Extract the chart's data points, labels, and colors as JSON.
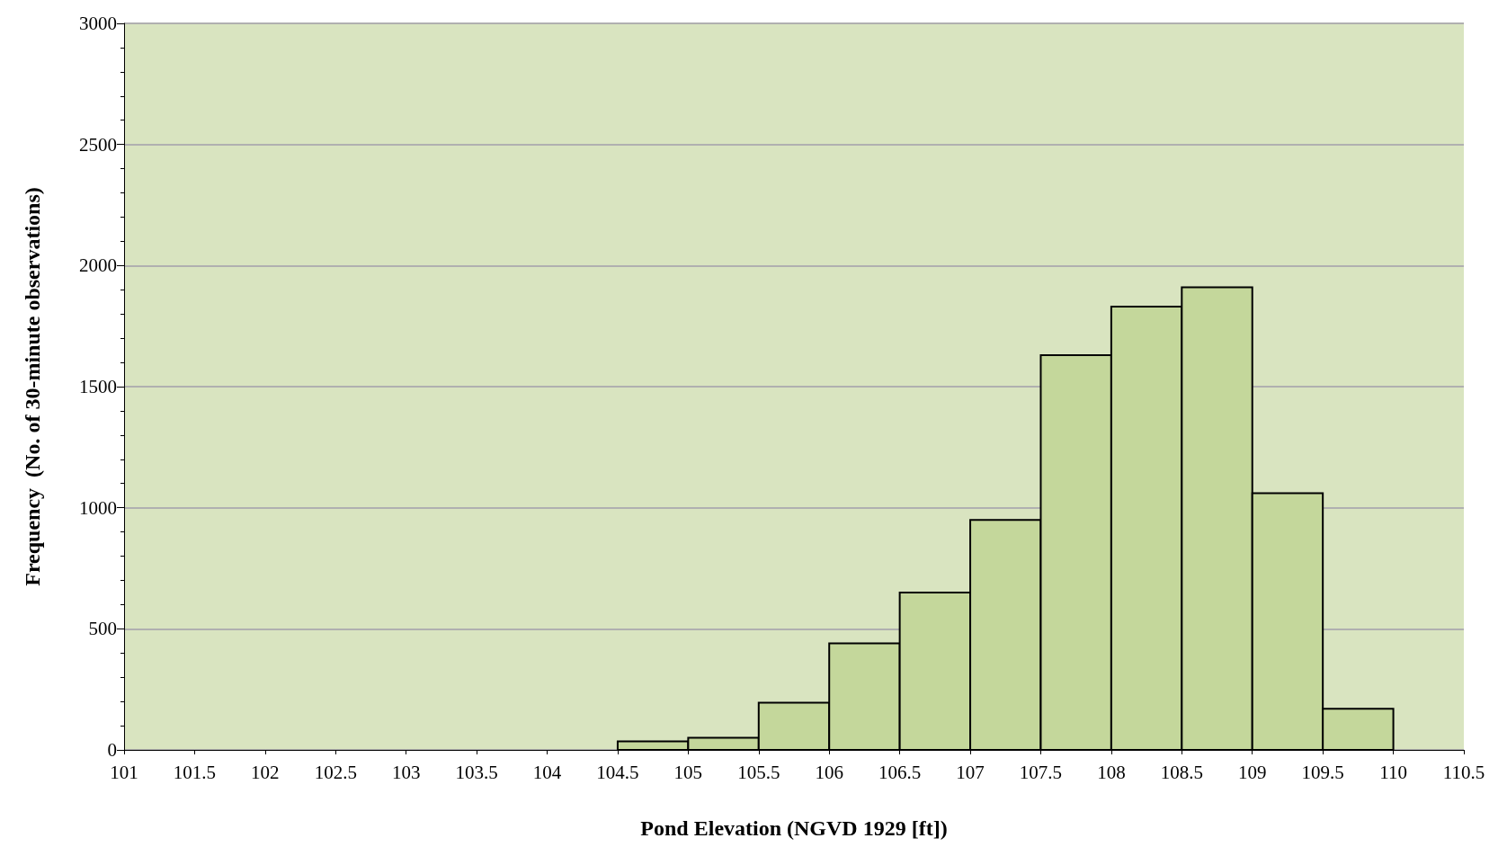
{
  "chart_data": {
    "type": "histogram",
    "xlabel": "Pond Elevation (NGVD 1929 [ft])",
    "ylabel": "Frequency  (No. of 30-minute observations)",
    "bins": [
      104.5,
      105,
      105.5,
      106,
      106.5,
      107,
      107.5,
      108,
      108.5,
      109,
      109.5,
      110
    ],
    "values": [
      35,
      50,
      195,
      440,
      650,
      950,
      1630,
      1830,
      1910,
      1060,
      170
    ],
    "color": "#c4d79b",
    "xlim": [
      101,
      110.5
    ],
    "xticks": [
      101,
      101.5,
      102,
      102.5,
      103,
      103.5,
      104,
      104.5,
      105,
      105.5,
      106,
      106.5,
      107,
      107.5,
      108,
      108.5,
      109,
      109.5,
      110,
      110.5
    ],
    "ylim": [
      0,
      3000
    ],
    "yticks": [
      0,
      500,
      1000,
      1500,
      2000,
      2500,
      3000
    ],
    "grid": "y"
  }
}
